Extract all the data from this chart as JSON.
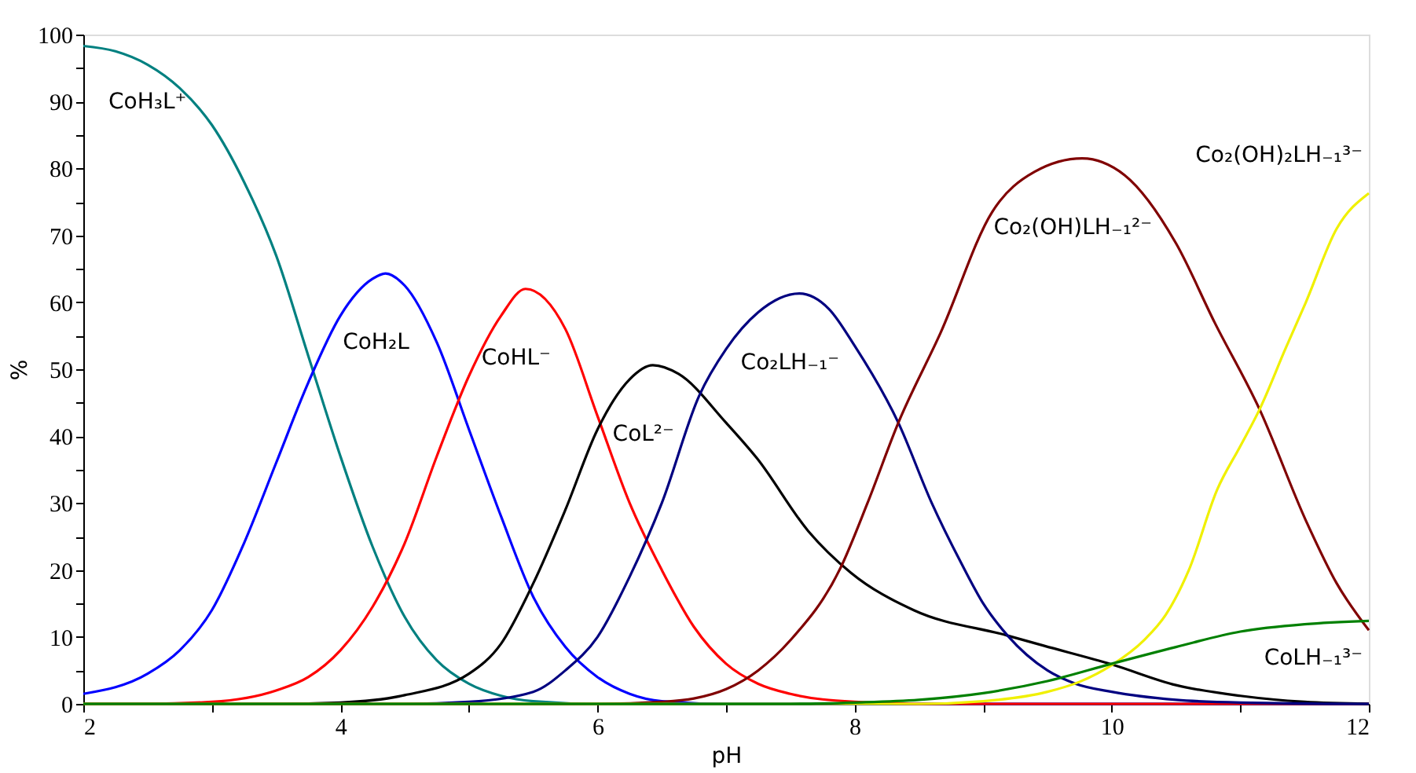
{
  "chart_data": {
    "type": "line",
    "xlabel": "pH",
    "ylabel": "%",
    "xlim": [
      2,
      12
    ],
    "xticks": [
      2,
      {
        "value": 3,
        "label": null
      },
      4,
      {
        "value": 5,
        "label": null
      },
      6,
      {
        "value": 7,
        "label": null
      },
      8,
      {
        "value": 9,
        "label": null
      },
      10,
      {
        "value": 11,
        "label": null
      },
      12
    ],
    "ylim": [
      0,
      100
    ],
    "yticks": [
      0,
      {
        "value": 5,
        "label": null
      },
      10,
      {
        "value": 15,
        "label": null
      },
      20,
      {
        "value": 25,
        "label": null
      },
      30,
      {
        "value": 35,
        "label": null
      },
      40,
      {
        "value": 45,
        "label": null
      },
      50,
      {
        "value": 55,
        "label": null
      },
      60,
      {
        "value": 65,
        "label": null
      },
      70,
      {
        "value": 75,
        "label": null
      },
      80,
      {
        "value": 85,
        "label": null
      },
      90,
      {
        "value": 95,
        "label": null
      },
      100
    ],
    "grid": false,
    "marker": "none",
    "line_style": "solid",
    "series": [
      {
        "name": "CoH₃L⁺",
        "color": "#008080",
        "x": [
          2.0,
          2.25,
          2.5,
          2.75,
          3.0,
          3.25,
          3.5,
          3.75,
          4.0,
          4.25,
          4.5,
          4.75,
          5.0,
          5.25,
          5.5,
          6.0,
          12.0
        ],
        "values": [
          98.3,
          97.5,
          95.5,
          92,
          86.5,
          78,
          67,
          52,
          37,
          23.5,
          13,
          6.5,
          3,
          1.2,
          0.4,
          0,
          0
        ]
      },
      {
        "name": "CoH₂L",
        "color": "#0000ff",
        "x": [
          2.0,
          2.5,
          2.75,
          3.0,
          3.25,
          3.5,
          3.75,
          4.0,
          4.25,
          4.35,
          4.5,
          4.75,
          5.0,
          5.25,
          5.5,
          5.75,
          6.0,
          6.25,
          6.5,
          7.0,
          12.0
        ],
        "values": [
          1.5,
          4.5,
          8,
          14,
          24,
          36,
          48,
          58,
          63.5,
          64.3,
          62.5,
          54,
          41,
          28,
          16,
          8.5,
          4,
          1.5,
          0.4,
          0,
          0
        ]
      },
      {
        "name": "CoHL⁻",
        "color": "#ff0000",
        "x": [
          2.0,
          2.5,
          3.0,
          3.5,
          3.75,
          4.0,
          4.25,
          4.5,
          4.75,
          5.0,
          5.25,
          5.44,
          5.75,
          6.0,
          6.25,
          6.5,
          6.75,
          7.0,
          7.25,
          7.5,
          8.0,
          8.5,
          12.0
        ],
        "values": [
          0,
          0,
          0.3,
          2,
          4,
          8,
          14.5,
          24,
          37,
          49,
          58,
          62,
          56,
          43,
          30,
          20,
          11.5,
          6,
          3,
          1.5,
          0.3,
          0,
          0
        ]
      },
      {
        "name": "CoL²⁻",
        "color": "#000000",
        "x": [
          2.0,
          3.5,
          4.0,
          4.5,
          5.0,
          5.25,
          5.5,
          5.75,
          6.0,
          6.25,
          6.43,
          6.63,
          7.0,
          7.24,
          7.64,
          7.97,
          8.46,
          9.19,
          9.47,
          10.0,
          10.5,
          11.0,
          11.5,
          12.0
        ],
        "values": [
          0,
          0,
          0.2,
          1.3,
          4.5,
          9,
          18,
          29,
          41,
          48.5,
          50.6,
          49.3,
          42,
          36.7,
          25.8,
          19.6,
          14,
          10.2,
          8.7,
          5.9,
          2.8,
          1.2,
          0.3,
          0
        ]
      },
      {
        "name": "Co₂LH₋₁⁻",
        "color": "#000080",
        "x": [
          2.0,
          4.5,
          5.0,
          5.5,
          5.75,
          6.0,
          6.25,
          6.5,
          6.79,
          7.0,
          7.25,
          7.57,
          7.8,
          8.0,
          8.34,
          8.6,
          8.83,
          9.0,
          9.19,
          9.5,
          9.72,
          10.0,
          10.5,
          11.0,
          12.0
        ],
        "values": [
          0,
          0,
          0.3,
          1.8,
          5,
          10,
          19,
          30,
          46,
          53,
          58.5,
          61.3,
          59,
          53.5,
          42,
          30,
          21,
          15,
          10.2,
          5,
          3,
          1.8,
          0.6,
          0.2,
          0
        ]
      },
      {
        "name": "Co₂(OH)LH₋₁²⁻",
        "color": "#800000",
        "x": [
          2.0,
          6.0,
          6.5,
          6.75,
          7.0,
          7.25,
          7.5,
          7.89,
          8.1,
          8.34,
          8.67,
          9.07,
          9.4,
          9.77,
          10.1,
          10.5,
          10.8,
          11.15,
          11.51,
          11.75,
          12.0
        ],
        "values": [
          0,
          0,
          0.3,
          0.8,
          2.2,
          5,
          9.5,
          20.3,
          30,
          42,
          55.5,
          73.5,
          79.5,
          81.5,
          79,
          68.8,
          57,
          44,
          27.4,
          18,
          11
        ]
      },
      {
        "name": "Co₂(OH)₂LH₋₁³⁻",
        "color": "#f0f000",
        "x": [
          2.0,
          8.5,
          9.0,
          9.5,
          9.75,
          10.0,
          10.25,
          10.42,
          10.6,
          10.82,
          11.0,
          11.15,
          11.35,
          11.51,
          11.75,
          12.0
        ],
        "values": [
          0,
          0,
          0.4,
          1.8,
          3.3,
          5.8,
          9.5,
          13.3,
          20,
          32,
          38.5,
          44,
          53,
          60,
          71,
          76.3
        ]
      },
      {
        "name": "CoLH₋₁³⁻",
        "color": "#008000",
        "x": [
          2.0,
          7.5,
          8.0,
          8.5,
          9.0,
          9.5,
          10.0,
          10.5,
          11.0,
          11.5,
          12.0
        ],
        "values": [
          0,
          0,
          0.2,
          0.6,
          1.6,
          3.4,
          6,
          8.5,
          10.8,
          11.9,
          12.4
        ]
      }
    ]
  }
}
